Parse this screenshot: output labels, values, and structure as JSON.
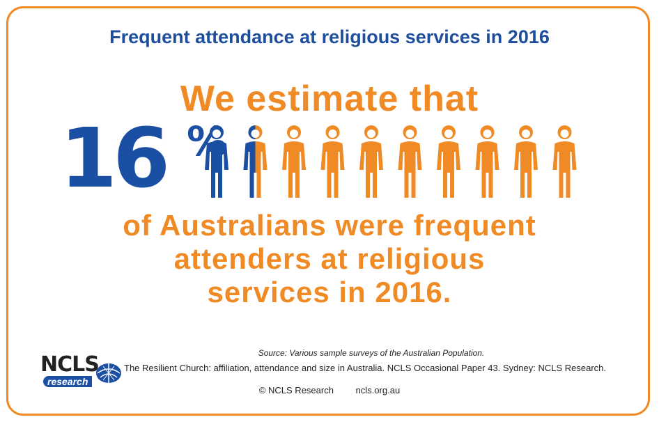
{
  "title": "Frequent attendance at religious services in 2016",
  "headline": "We estimate that",
  "statistic": {
    "number": "16",
    "unit": "%"
  },
  "figures": {
    "total": 10,
    "highlighted": 1.5,
    "highlight_color": "#1a4fa3",
    "base_color": "#f08a24"
  },
  "subtitle_lines": [
    "of Australians were frequent",
    "attenders at religious",
    "services in 2016."
  ],
  "source": "Source:  Various sample surveys of the Australian Population.",
  "reference": "The Resilient Church: affiliation, attendance and size in Australia. NCLS Occasional Paper 43. Sydney: NCLS Research.",
  "logo": {
    "main": "NCLS",
    "sub": "research"
  },
  "footer": {
    "copyright": "© NCLS Research",
    "website": "ncls.org.au"
  },
  "colors": {
    "border": "#f08a24",
    "title": "#1f4f9c"
  }
}
